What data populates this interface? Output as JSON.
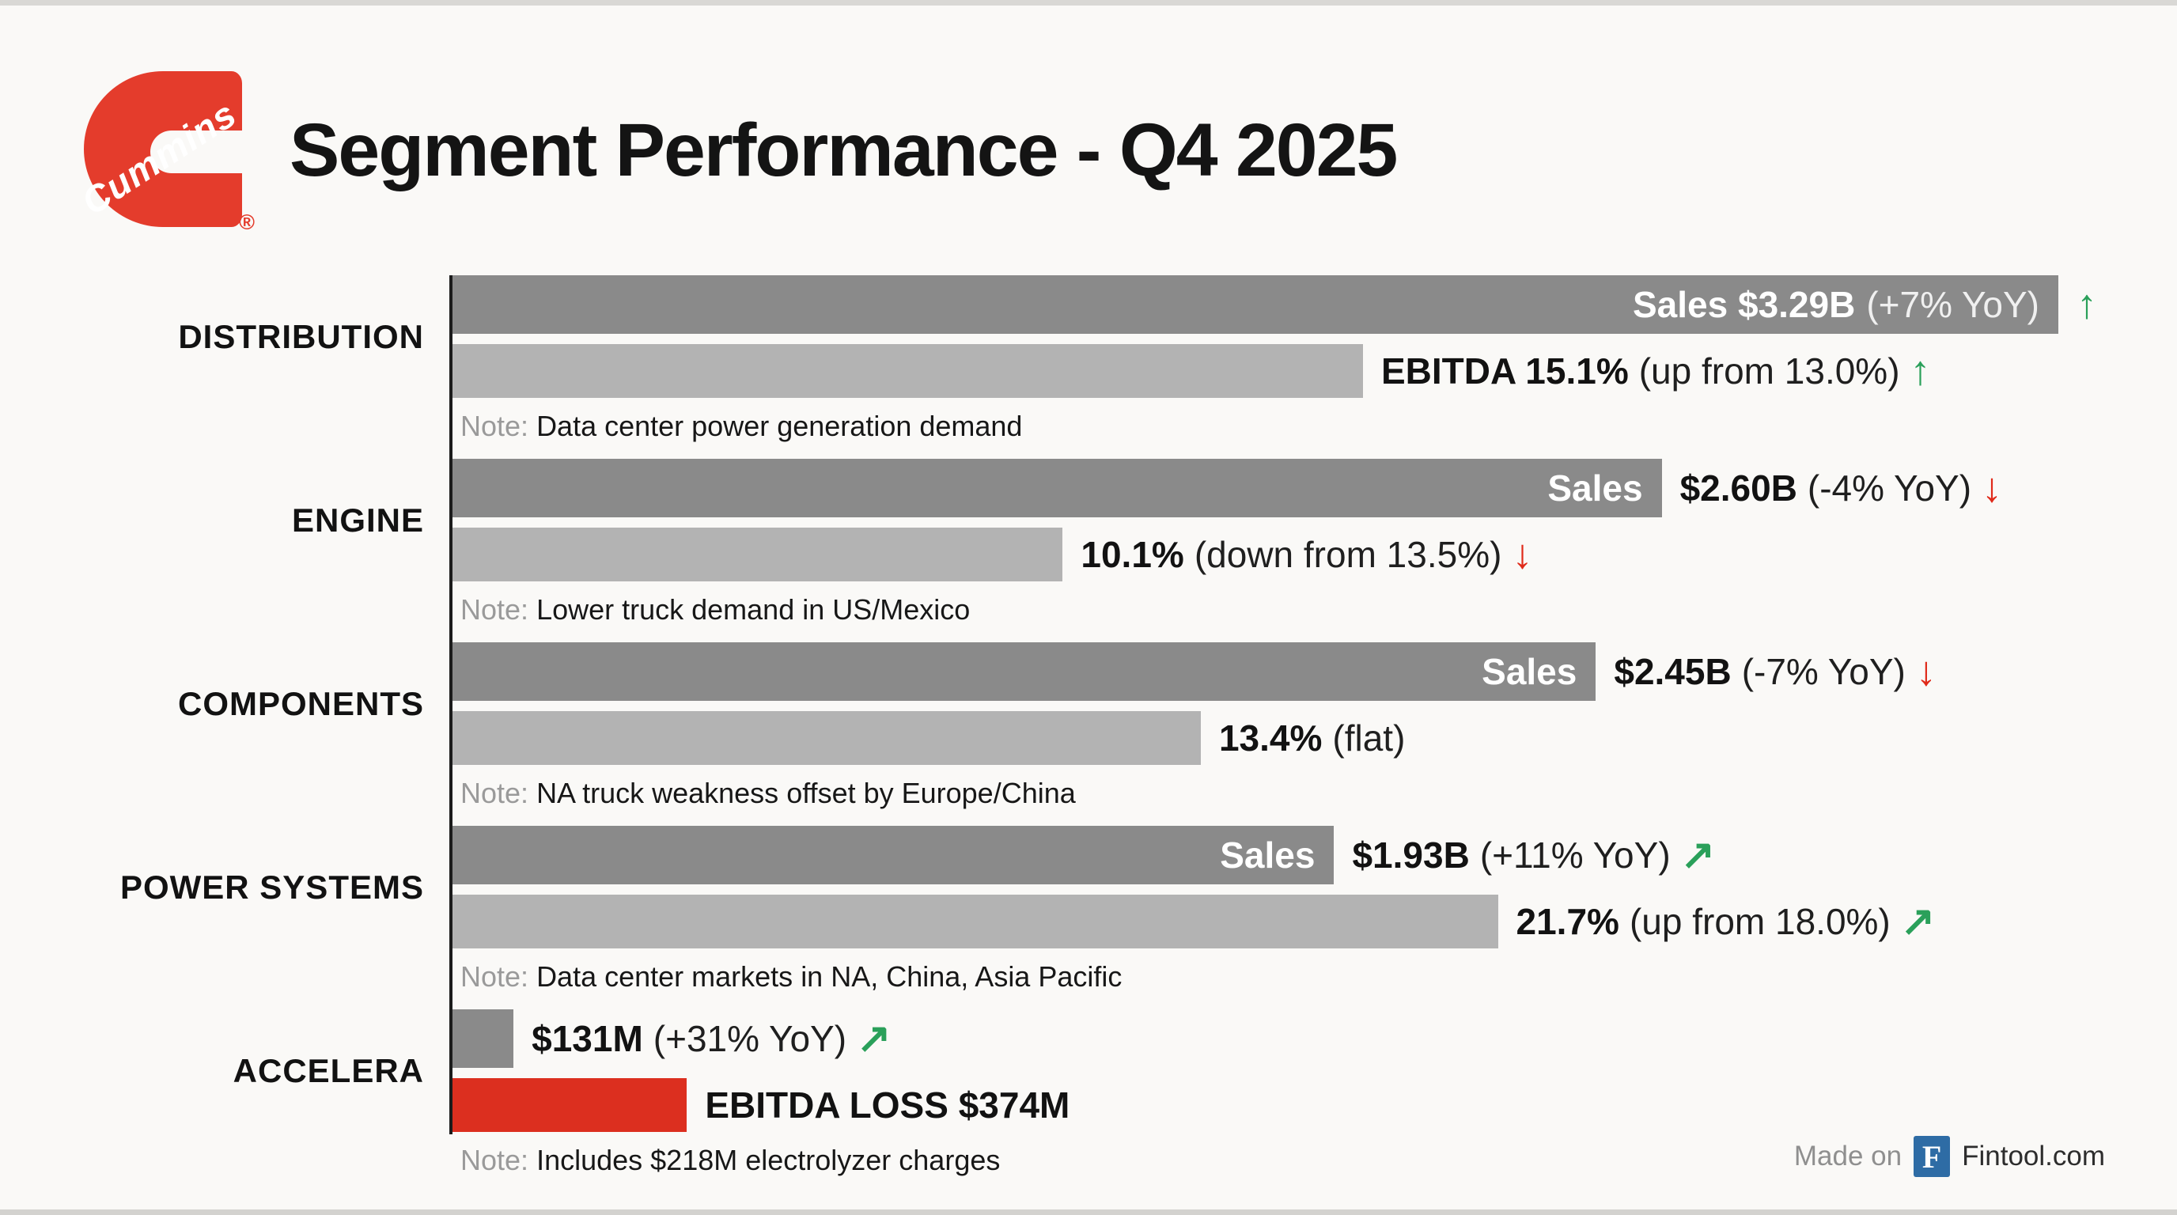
{
  "header": {
    "title": "Segment Performance - Q4 2025",
    "logo_text": "Cummins",
    "registered_mark": "®"
  },
  "labels": {
    "note_prefix": "Note:"
  },
  "icons": {
    "arrow-up": "↑",
    "arrow-down": "↓",
    "arrow-up-right": "↗"
  },
  "colors": {
    "background": "#faf9f7",
    "bar_dark": "#8a8a8a",
    "bar_light": "#b3b3b3",
    "bar_red": "#dc2f1f",
    "green": "#2aa05a",
    "red": "#e02a1a",
    "logo_red": "#e43c2c",
    "axis": "#1c1c1c",
    "note_gray": "#9a9a9a",
    "footer_blue": "#2e6ca5"
  },
  "footer": {
    "made_on": "Made on",
    "badge_letter": "F",
    "brand": "Fintool.com"
  },
  "chart_data": {
    "type": "bar",
    "orientation": "horizontal",
    "title": "Segment Performance - Q4 2025",
    "legend": "none",
    "grid": false,
    "bar_scale_note": "width_pct is relative to the longest bar (Distribution sales $3.29B = 100)",
    "segments": [
      {
        "name": "DISTRIBUTION",
        "sales_value_usd_b": 3.29,
        "sales_yoy_pct": 7,
        "ebitda_margin_pct": 15.1,
        "ebitda_prev_pct": 13.0,
        "sales": {
          "width_pct": 100,
          "inside_bold": "Sales $3.29B",
          "inside_rest": "(+7% YoY)",
          "outside_bold": "",
          "outside_rest": "",
          "arrow": "arrow-up"
        },
        "ebitda": {
          "width_pct": 56.7,
          "red": false,
          "outside_bold": "EBITDA 15.1%",
          "outside_rest": "(up from 13.0%)",
          "arrow": "arrow-up"
        },
        "note": "Data center power generation demand"
      },
      {
        "name": "ENGINE",
        "sales_value_usd_b": 2.6,
        "sales_yoy_pct": -4,
        "ebitda_margin_pct": 10.1,
        "ebitda_prev_pct": 13.5,
        "sales": {
          "width_pct": 75.3,
          "inside_bold": "Sales",
          "inside_rest": "",
          "outside_bold": "$2.60B",
          "outside_rest": "(-4% YoY)",
          "arrow": "arrow-down"
        },
        "ebitda": {
          "width_pct": 38.0,
          "red": false,
          "outside_bold": "10.1%",
          "outside_rest": "(down from 13.5%)",
          "arrow": "arrow-down"
        },
        "note": "Lower truck demand in US/Mexico"
      },
      {
        "name": "COMPONENTS",
        "sales_value_usd_b": 2.45,
        "sales_yoy_pct": -7,
        "ebitda_margin_pct": 13.4,
        "ebitda_prev_pct": "flat",
        "sales": {
          "width_pct": 71.2,
          "inside_bold": "Sales",
          "inside_rest": "",
          "outside_bold": "$2.45B",
          "outside_rest": "(-7% YoY)",
          "arrow": "arrow-down"
        },
        "ebitda": {
          "width_pct": 46.6,
          "red": false,
          "outside_bold": "13.4%",
          "outside_rest": "(flat)",
          "arrow": null
        },
        "note": "NA truck weakness offset by Europe/China"
      },
      {
        "name": "POWER SYSTEMS",
        "sales_value_usd_b": 1.93,
        "sales_yoy_pct": 11,
        "ebitda_margin_pct": 21.7,
        "ebitda_prev_pct": 18.0,
        "sales": {
          "width_pct": 54.9,
          "inside_bold": "Sales",
          "inside_rest": "",
          "outside_bold": "$1.93B",
          "outside_rest": "(+11% YoY)",
          "arrow": "arrow-up-right"
        },
        "ebitda": {
          "width_pct": 65.1,
          "red": false,
          "outside_bold": "21.7%",
          "outside_rest": "(up from 18.0%)",
          "arrow": "arrow-up-right"
        },
        "note": "Data center markets in NA, China, Asia Pacific"
      },
      {
        "name": "ACCELERA",
        "sales_value_usd_m": 131,
        "sales_yoy_pct": 31,
        "ebitda_loss_usd_m": 374,
        "sales": {
          "width_pct": 3.8,
          "inside_bold": "",
          "inside_rest": "",
          "outside_bold": "$131M",
          "outside_rest": "(+31% YoY)",
          "arrow": "arrow-up-right"
        },
        "ebitda": {
          "width_pct": 14.6,
          "red": true,
          "outside_bold": "EBITDA LOSS $374M",
          "outside_rest": "",
          "arrow": null
        },
        "note": "Includes $218M electrolyzer charges"
      }
    ]
  }
}
